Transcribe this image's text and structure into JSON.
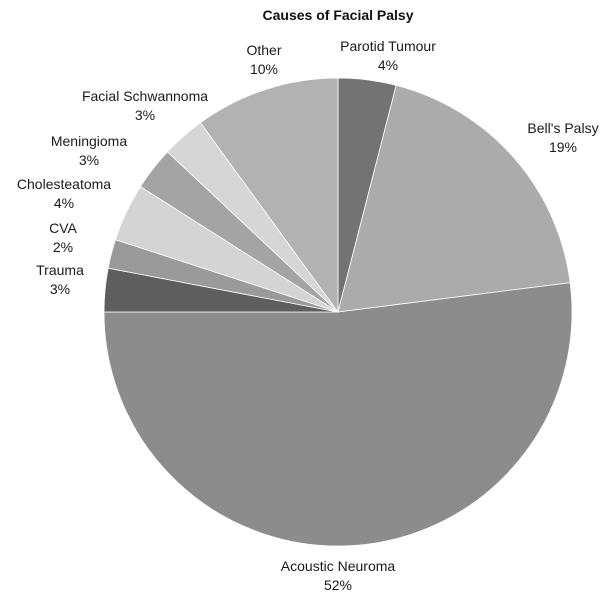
{
  "chart_data": {
    "type": "pie",
    "title": "Causes of Facial Palsy",
    "slices": [
      {
        "label": "Parotid Tumour",
        "value": 4,
        "value_label": "4%",
        "color": "#737373"
      },
      {
        "label": "Bell's Palsy",
        "value": 19,
        "value_label": "19%",
        "color": "#ababab"
      },
      {
        "label": "Acoustic Neuroma",
        "value": 52,
        "value_label": "52%",
        "color": "#8c8c8c"
      },
      {
        "label": "Trauma",
        "value": 3,
        "value_label": "3%",
        "color": "#5e5e5e"
      },
      {
        "label": "CVA",
        "value": 2,
        "value_label": "2%",
        "color": "#9a9a9a"
      },
      {
        "label": "Cholesteatoma",
        "value": 4,
        "value_label": "4%",
        "color": "#d4d4d4"
      },
      {
        "label": "Meningioma",
        "value": 3,
        "value_label": "3%",
        "color": "#a4a4a4"
      },
      {
        "label": "Facial Schwannoma",
        "value": 3,
        "value_label": "3%",
        "color": "#d6d6d6"
      },
      {
        "label": "Other",
        "value": 10,
        "value_label": "10%",
        "color": "#b2b2b2"
      }
    ],
    "start": "12 o'clock",
    "direction": "clockwise",
    "legend": "none"
  }
}
